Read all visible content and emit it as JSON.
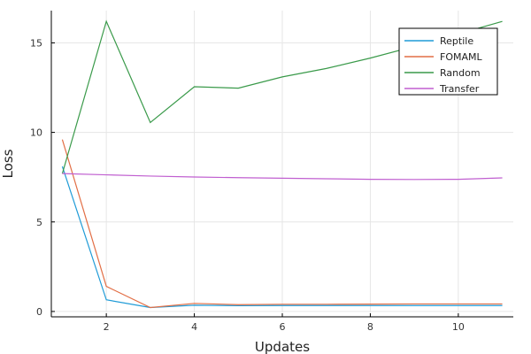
{
  "chart_data": {
    "type": "line",
    "xlabel": "Updates",
    "ylabel": "Loss",
    "xlim": [
      0.75,
      11.25
    ],
    "ylim": [
      -0.3,
      16.8
    ],
    "xticks": [
      2,
      4,
      6,
      8,
      10
    ],
    "yticks": [
      0,
      5,
      10,
      15
    ],
    "grid": true,
    "legend_position": "top-right",
    "x": [
      1,
      2,
      3,
      4,
      5,
      6,
      7,
      8,
      9,
      10,
      11
    ],
    "series": [
      {
        "name": "Reptile",
        "color": "#1f9bd7",
        "values": [
          8.1,
          0.65,
          0.22,
          0.35,
          0.32,
          0.33,
          0.33,
          0.33,
          0.33,
          0.33,
          0.33
        ]
      },
      {
        "name": "FOMAML",
        "color": "#e26f46",
        "values": [
          9.6,
          1.4,
          0.22,
          0.45,
          0.38,
          0.4,
          0.4,
          0.41,
          0.42,
          0.42,
          0.42
        ]
      },
      {
        "name": "Random",
        "color": "#3a9a4a",
        "values": [
          7.7,
          16.2,
          10.55,
          12.55,
          12.47,
          13.1,
          13.57,
          14.15,
          14.8,
          15.5,
          16.2
        ]
      },
      {
        "name": "Transfer",
        "color": "#c05fd0",
        "values": [
          7.7,
          7.63,
          7.56,
          7.51,
          7.47,
          7.44,
          7.41,
          7.38,
          7.37,
          7.38,
          7.46
        ]
      }
    ]
  }
}
